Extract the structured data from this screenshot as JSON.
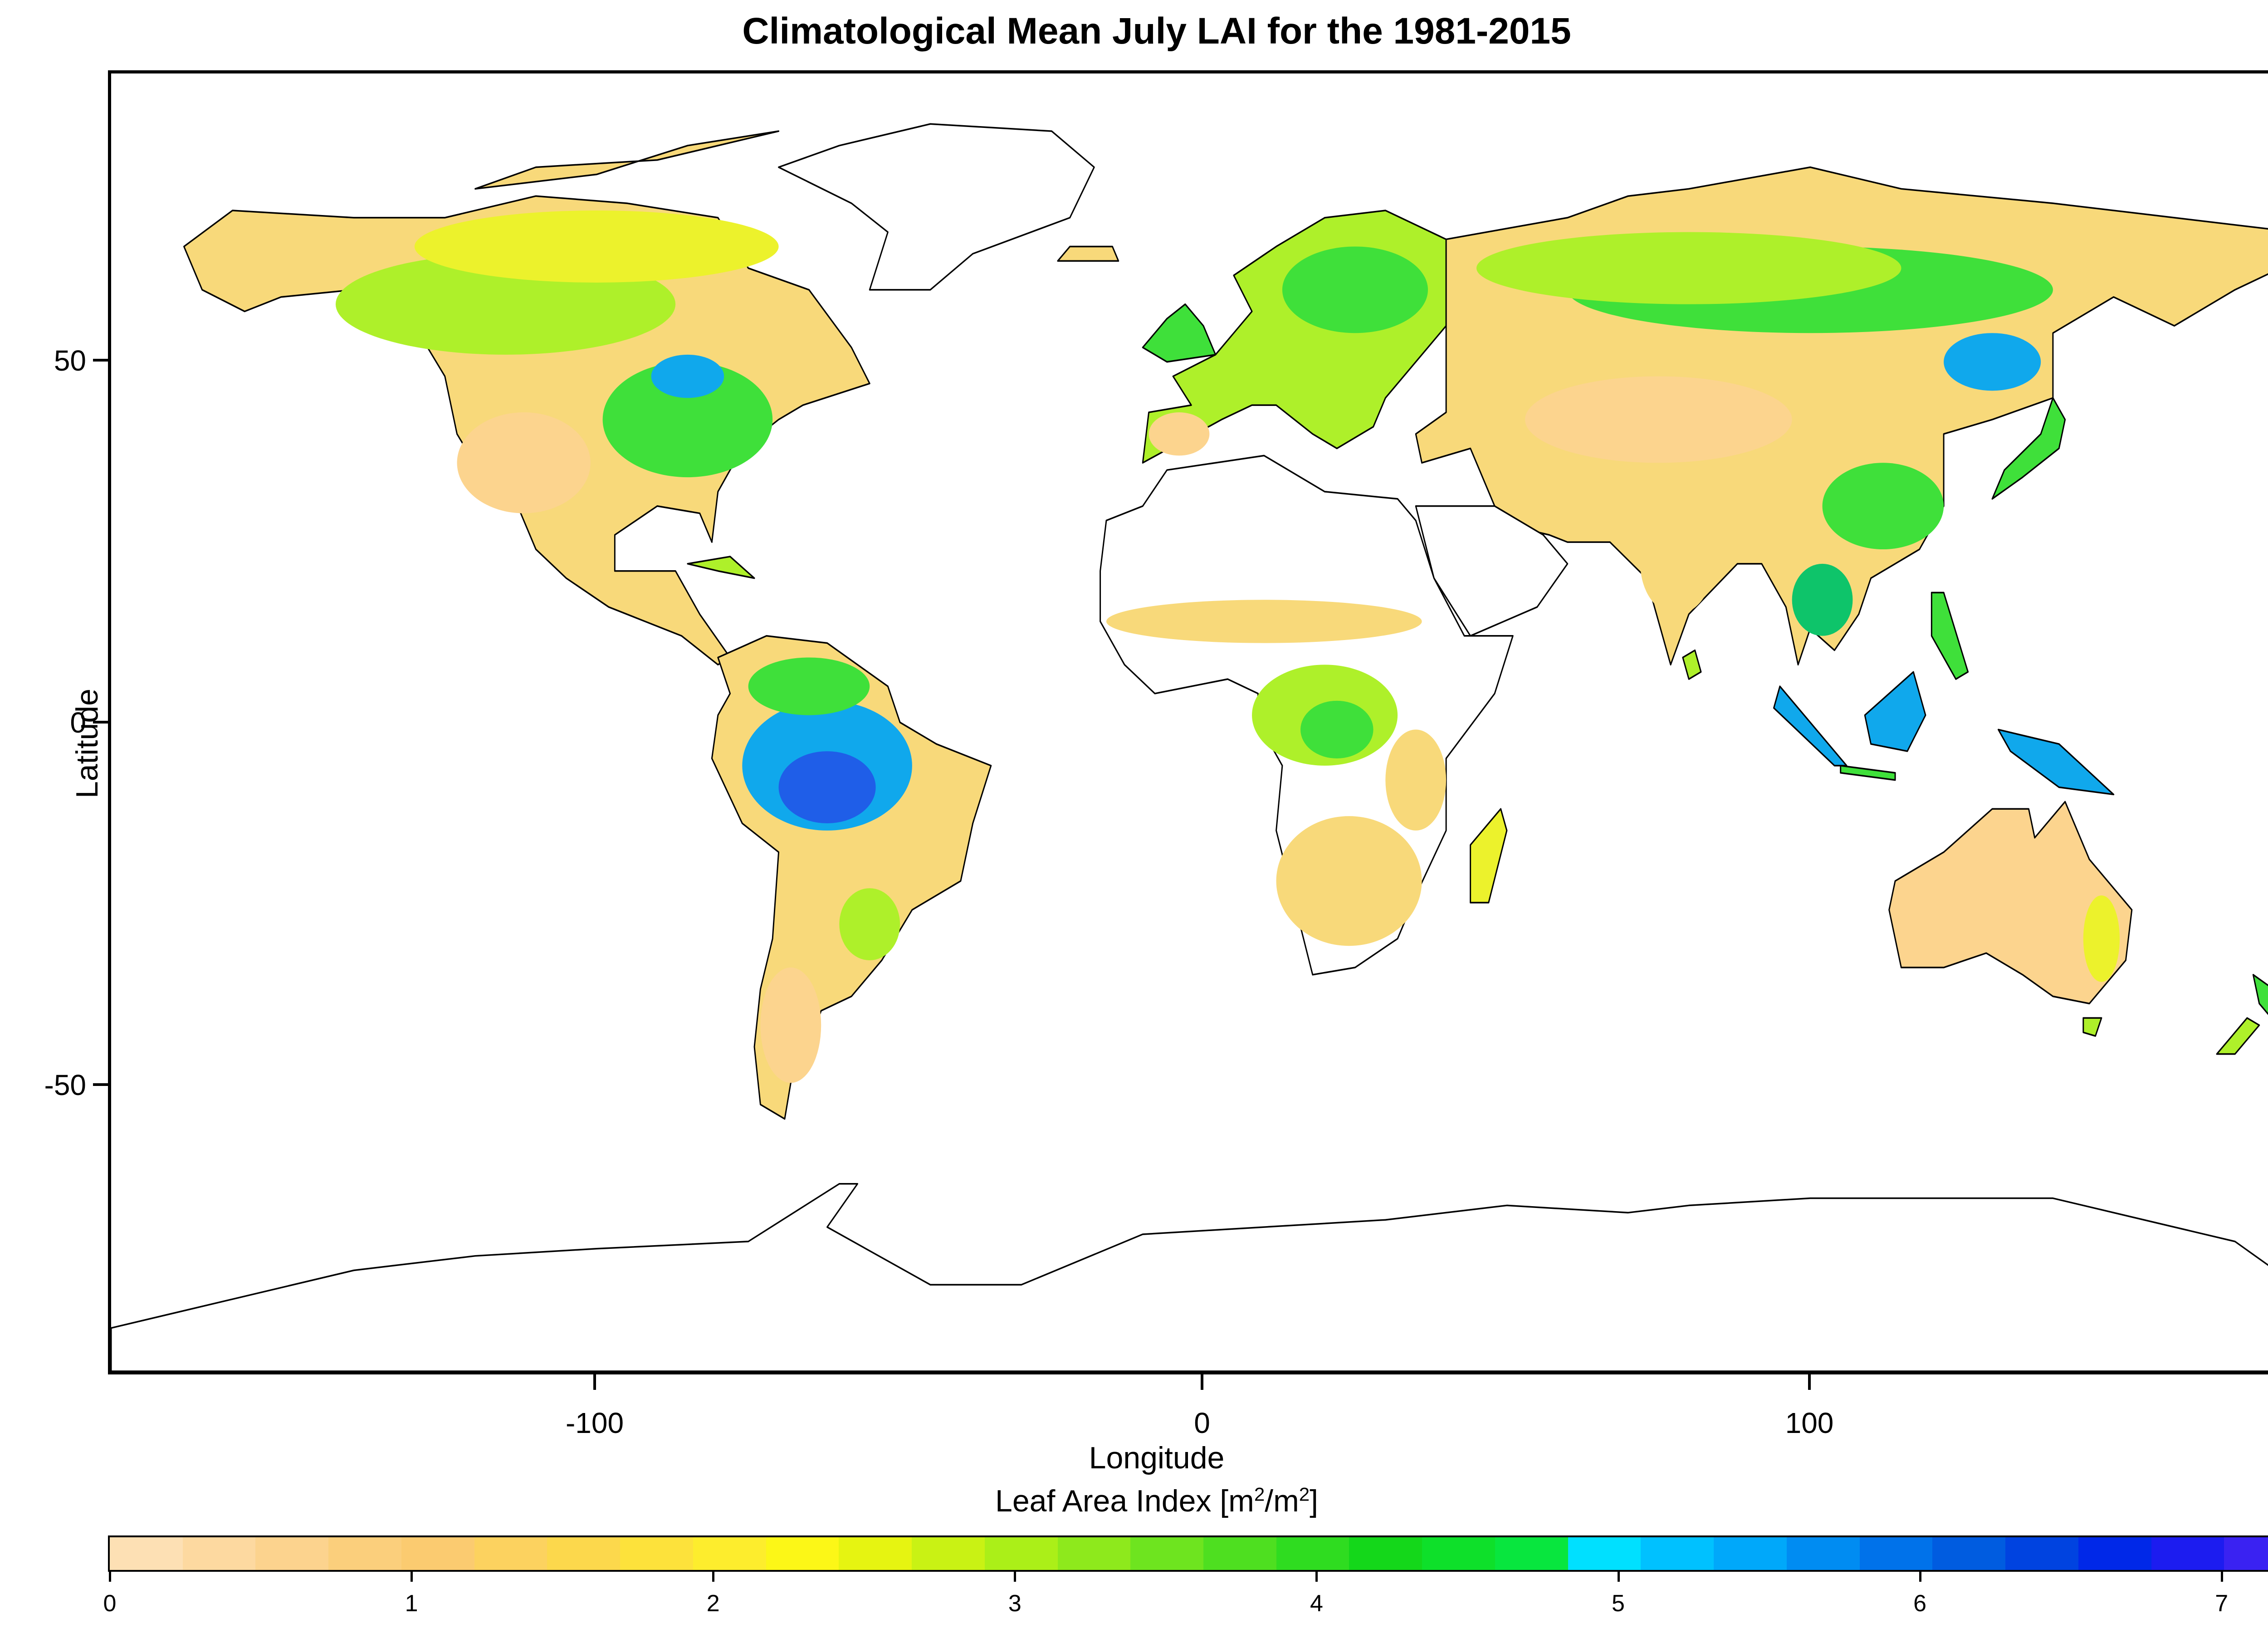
{
  "title": "Climatological Mean July LAI for the 1981-2015",
  "axes": {
    "xlabel": "Longitude",
    "ylabel": "Latitude",
    "xticks": [
      "-100",
      "0",
      "100"
    ],
    "yticks": [
      "50",
      "0",
      "-50"
    ]
  },
  "colorbar": {
    "title_main": "Leaf Area Index [m",
    "title_sup1": "2",
    "title_mid": "/m",
    "title_sup2": "2",
    "title_end": "]",
    "ticks": [
      "0",
      "1",
      "2",
      "3",
      "4",
      "5",
      "6",
      "7"
    ],
    "range": [
      0,
      7.25
    ],
    "colors": [
      "#fde0b4",
      "#fdd9a0",
      "#fcd38e",
      "#fbcf7c",
      "#fbcb70",
      "#fcd25f",
      "#fcd84c",
      "#fde23b",
      "#fded2d",
      "#fcf717",
      "#e6f411",
      "#c9f214",
      "#abef18",
      "#8ee91c",
      "#6ee41f",
      "#4edf20",
      "#2fdc20",
      "#14d71a",
      "#0ee02a",
      "#08e63e",
      "#00e0ff",
      "#00c1ff",
      "#00a8fa",
      "#008cf2",
      "#0072ea",
      "#005ce0",
      "#0043e0",
      "#0028e8",
      "#1c1cf0",
      "#3a22f2"
    ]
  },
  "map": {
    "extent": {
      "lon": [
        -180,
        180
      ],
      "lat": [
        -90,
        90
      ]
    },
    "colors": {
      "border": "#000000",
      "bare": "#fcd48e",
      "sparse": "#f8d97a",
      "grass": "#ecf22c",
      "shrub": "#aef02a",
      "forest": "#3fe03a",
      "dense": "#0ec46a",
      "wet": "#10a8ec",
      "rain": "#1f5ee8"
    }
  }
}
